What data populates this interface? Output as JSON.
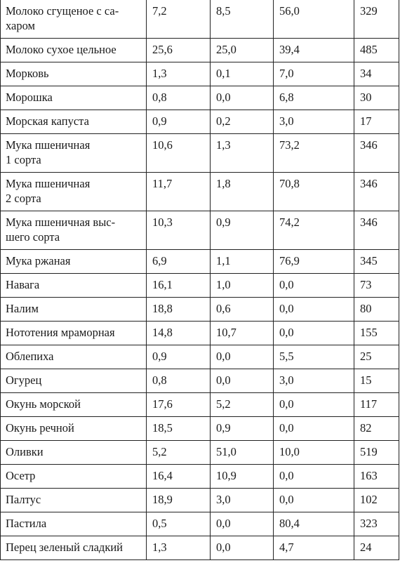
{
  "table": {
    "rows": [
      [
        "Молоко сгущеное с са-\nхаром",
        "7,2",
        "8,5",
        "56,0",
        "329"
      ],
      [
        "Молоко сухое цельное",
        "25,6",
        "25,0",
        "39,4",
        "485"
      ],
      [
        "Морковь",
        "1,3",
        "0,1",
        "7,0",
        "34"
      ],
      [
        "Морошка",
        "0,8",
        "0,0",
        "6,8",
        "30"
      ],
      [
        "Морская капуста",
        "0,9",
        "0,2",
        "3,0",
        "17"
      ],
      [
        "Мука пшеничная\n1 сорта",
        "10,6",
        "1,3",
        "73,2",
        "346"
      ],
      [
        "Мука пшеничная\n2 сорта",
        "11,7",
        "1,8",
        "70,8",
        "346"
      ],
      [
        "Мука пшеничная выс-\nшего сорта",
        "10,3",
        "0,9",
        "74,2",
        "346"
      ],
      [
        "Мука ржаная",
        "6,9",
        "1,1",
        "76,9",
        "345"
      ],
      [
        "Навага",
        "16,1",
        "1,0",
        "0,0",
        "73"
      ],
      [
        "Налим",
        "18,8",
        "0,6",
        "0,0",
        "80"
      ],
      [
        "Нототения мраморная",
        "14,8",
        "10,7",
        "0,0",
        "155"
      ],
      [
        "Облепиха",
        "0,9",
        "0,0",
        "5,5",
        "25"
      ],
      [
        "Огурец",
        "0,8",
        "0,0",
        "3,0",
        "15"
      ],
      [
        "Окунь морской",
        "17,6",
        "5,2",
        "0,0",
        "117"
      ],
      [
        "Окунь речной",
        "18,5",
        "0,9",
        "0,0",
        "82"
      ],
      [
        "Оливки",
        "5,2",
        "51,0",
        "10,0",
        "519"
      ],
      [
        "Осетр",
        "16,4",
        "10,9",
        "0,0",
        "163"
      ],
      [
        "Палтус",
        "18,9",
        "3,0",
        "0,0",
        "102"
      ],
      [
        "Пастила",
        "0,5",
        "0,0",
        "80,4",
        "323"
      ],
      [
        "Перец зеленый сладкий",
        "1,3",
        "0,0",
        "4,7",
        "24"
      ]
    ]
  }
}
